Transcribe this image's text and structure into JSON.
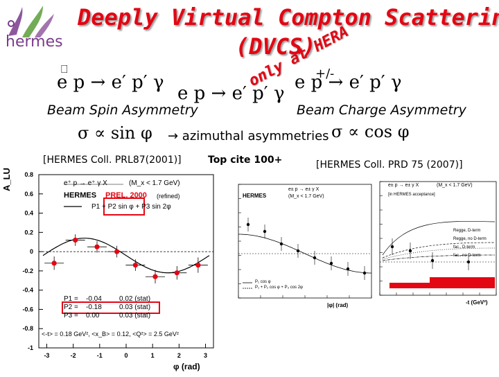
{
  "slide": {
    "title_line1": "Deeply Virtual Compton Scattering",
    "title_line2": "(DVCS)",
    "logo_text": "hermes",
    "only_at_hera": "only at HERA",
    "plusminus": "+/-",
    "reaction_1": "e p → e′ p′ γ",
    "reaction_2": "e p → e′ p′ γ",
    "reaction_3": "e p → e′ p′ γ",
    "beam_spin_label": "Beam Spin Asymmetry",
    "beam_charge_label": "Beam Charge Asymmetry",
    "formula_sin": "σ ∝ sin φ",
    "formula_cos": "σ ∝ cos φ",
    "azimuthal_text": "→ azimuthal asymmetries",
    "ref_left": "[HERMES Coll. PRL87(2001)]",
    "top_cite": "Top cite 100+",
    "ref_right": "[HERMES Coll. PRD 75 (2007)]"
  },
  "left_plot": {
    "ylabel": "A_LU",
    "xlabel": "φ (rad)",
    "legend_reaction": "e⁺ p → e⁺ γ X",
    "legend_cut": "(M_x < 1.7 GeV)",
    "hermes": "HERMES",
    "prel": "PREL. 2000",
    "refined": "(refined)",
    "fit_label": "P1 + P2 sin φ + P3 sin 2φ",
    "params": [
      {
        "name": "P1 =",
        "value": "-0.04",
        "err": "0.02 (stat)"
      },
      {
        "name": "P2 =",
        "value": "-0.18",
        "err": "0.03 (stat)"
      },
      {
        "name": "P3 =",
        "value": "0.00",
        "err": "0.03 (stat)"
      }
    ],
    "kinematics": "<-t> = 0.18 GeV², <x_B> = 0.12, <Q²> = 2.5 GeV²"
  },
  "middle_plot": {
    "hermes": "HERMES",
    "legend_reaction": "e± p → e± γ X",
    "legend_cut": "(M_x < 1.7 GeV)",
    "fit1": "P₁ cos φ",
    "fit2": "P₁ + P₂ cos φ + P₃ cos 2φ",
    "xlabel": "|φ| (rad)"
  },
  "right_plot": {
    "legend_reaction": "e± p → e± γ X",
    "legend_cut": "(M_x < 1.7 GeV)",
    "acceptance": "[in HERMES acceptance]",
    "models": [
      "Regge, D-term",
      "Regge, no D-term",
      "fac., D-term",
      "fac., no D-term"
    ],
    "xlabel": "-t (GeV²)"
  },
  "chart_data": [
    {
      "type": "scatter",
      "x": [
        -2.72,
        -1.92,
        -1.1,
        -0.35,
        0.35,
        1.1,
        1.92,
        2.72
      ],
      "y": [
        -0.12,
        0.12,
        0.05,
        0.0,
        -0.14,
        -0.26,
        -0.22,
        -0.14
      ],
      "yerr": [
        0.07,
        0.06,
        0.06,
        0.06,
        0.06,
        0.07,
        0.07,
        0.08
      ],
      "xlim": [
        -3.3,
        3.3
      ],
      "ylim": [
        -1,
        0.8
      ],
      "xticks": [
        -3,
        -2,
        -1,
        0,
        1,
        2,
        3
      ],
      "yticks": [
        -1,
        -0.8,
        -0.6,
        -0.4,
        -0.2,
        0,
        0.2,
        0.4,
        0.6,
        0.8
      ],
      "fit": {
        "P1": -0.04,
        "P2": -0.18,
        "P3": 0.0
      },
      "xlabel": "φ (rad)",
      "ylabel": "A_LU"
    }
  ],
  "colors": {
    "accent": "#e30613",
    "logo": "#7a3a8c"
  }
}
